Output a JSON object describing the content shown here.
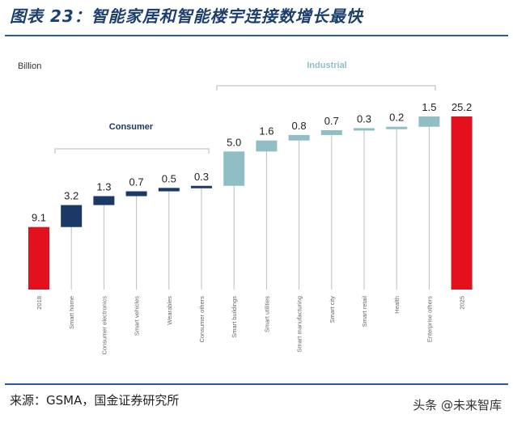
{
  "header": {
    "title": "图表 23：智能家居和智能楼宇连接数增长最快"
  },
  "footer": {
    "source": "来源：GSMA，国金证券研究所",
    "watermark": "头条 @未来智库"
  },
  "colors": {
    "red": "#e3101e",
    "navy": "#1b3866",
    "teal": "#8fbfc4",
    "label": "#666666",
    "bracket": "#cfcfcf",
    "rule": "#2a5a9a"
  },
  "chart_data": {
    "type": "bar",
    "subtype": "waterfall",
    "unit_label": "Billion",
    "group_labels": {
      "consumer": "Consumer",
      "industrial": "Industrial"
    },
    "categories": [
      "2018",
      "Smart home",
      "Consumer electronics",
      "Smart vehicles",
      "Wearables",
      "Consumer others",
      "Smart buildings",
      "Smart utilities",
      "Smart manufacturing",
      "Smart city",
      "Smart retail",
      "Health",
      "Enterprise others",
      "2025"
    ],
    "values": [
      9.1,
      3.2,
      1.3,
      0.7,
      0.5,
      0.3,
      5.0,
      1.6,
      0.8,
      0.7,
      0.3,
      0.2,
      1.5,
      25.2
    ],
    "value_labels": [
      "9.1",
      "3.2",
      "1.3",
      "0.7",
      "0.5",
      "0.3",
      "5.0",
      "1.6",
      "0.8",
      "0.7",
      "0.3",
      "0.2",
      "1.5",
      "25.2"
    ],
    "groups": [
      "total",
      "consumer",
      "consumer",
      "consumer",
      "consumer",
      "consumer",
      "industrial",
      "industrial",
      "industrial",
      "industrial",
      "industrial",
      "industrial",
      "industrial",
      "total"
    ],
    "ylim": [
      0,
      25.2
    ],
    "grid": false
  }
}
